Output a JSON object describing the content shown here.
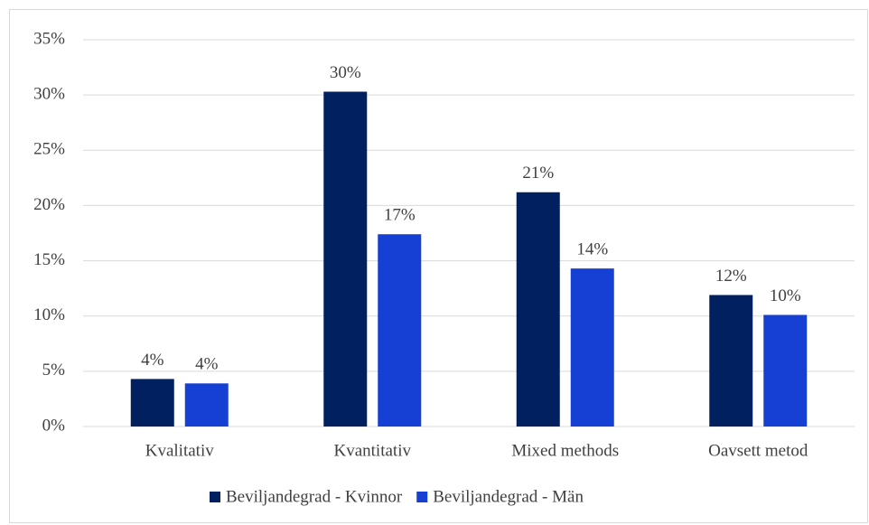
{
  "chart_data": {
    "type": "bar",
    "categories": [
      "Kvalitativ",
      "Kvantitativ",
      "Mixed methods",
      "Oavsett metod"
    ],
    "series": [
      {
        "name": "Beviljandegrad - Kvinnor",
        "color": "#002060",
        "values": [
          4.3,
          30.3,
          21.2,
          11.9
        ],
        "value_labels": [
          "4%",
          "30%",
          "21%",
          "12%"
        ]
      },
      {
        "name": "Beviljandegrad - Män",
        "color": "#1640d4",
        "values": [
          3.9,
          17.4,
          14.3,
          10.1
        ],
        "value_labels": [
          "4%",
          "17%",
          "14%",
          "10%"
        ]
      }
    ],
    "ylim": [
      0,
      35
    ],
    "yticks": [
      {
        "value": 0,
        "label": "0%"
      },
      {
        "value": 5,
        "label": "5%"
      },
      {
        "value": 10,
        "label": "10%"
      },
      {
        "value": 15,
        "label": "15%"
      },
      {
        "value": 20,
        "label": "20%"
      },
      {
        "value": 25,
        "label": "25%"
      },
      {
        "value": 30,
        "label": "30%"
      },
      {
        "value": 35,
        "label": "35%"
      }
    ],
    "grid": true,
    "legend": "bottom"
  }
}
